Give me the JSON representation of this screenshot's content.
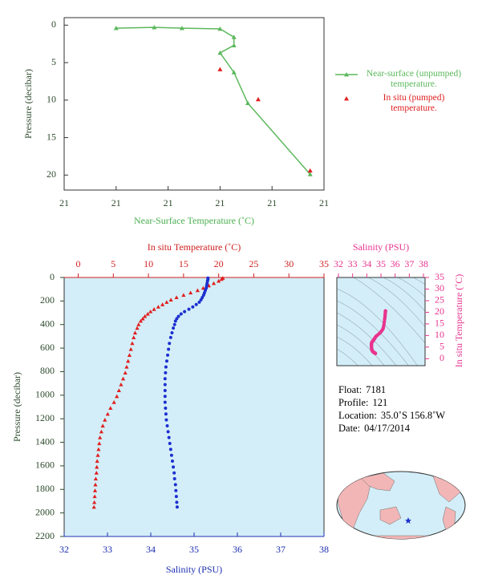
{
  "chart_data": [
    {
      "type": "line",
      "xlabel": "Near-Surface Temperature (˚C)",
      "ylabel": "Pressure (decibar)",
      "xlim": [
        20.6,
        21.35
      ],
      "xticks": [
        {
          "value": 20.6,
          "label": "21"
        },
        {
          "value": 20.75,
          "label": "21"
        },
        {
          "value": 20.9,
          "label": "21"
        },
        {
          "value": 21.05,
          "label": "21"
        },
        {
          "value": 21.2,
          "label": "21"
        },
        {
          "value": 21.35,
          "label": "21"
        }
      ],
      "ylim": [
        -1,
        22
      ],
      "yticks": [
        0,
        5,
        10,
        15,
        20
      ],
      "y_inverted": true,
      "legend": "right",
      "series": [
        {
          "name": "Near-surface (unpumped) temperature.",
          "color": "#5cb85c",
          "line": true,
          "marker": "triangle",
          "x": [
            20.75,
            20.86,
            20.94,
            21.05,
            21.09,
            21.09,
            21.05,
            21.09,
            21.13,
            21.31
          ],
          "values": [
            0.4,
            0.3,
            0.4,
            0.5,
            1.6,
            2.7,
            3.7,
            6.3,
            10.4,
            19.9
          ]
        },
        {
          "name": "In situ (pumped) temperature.",
          "color": "#e02020",
          "line": false,
          "marker": "triangle",
          "x": [
            21.05,
            21.16,
            21.31
          ],
          "values": [
            5.9,
            9.9,
            19.4
          ]
        }
      ]
    },
    {
      "type": "scatter",
      "ylabel": "Pressure (decibar)",
      "ylim": [
        0,
        2200
      ],
      "yticks": [
        0,
        200,
        400,
        600,
        800,
        1000,
        1200,
        1400,
        1600,
        1800,
        2000,
        2200
      ],
      "y_inverted": true,
      "xlabel": "Salinity (PSU)",
      "xlim": [
        32,
        38
      ],
      "xticks": [
        32,
        33,
        34,
        35,
        36,
        37,
        38
      ],
      "xcolor": "#1c2fb0",
      "x2label": "In situ Temperature (˚C)",
      "x2lim": [
        -2,
        35
      ],
      "x2ticks": [
        0,
        5,
        10,
        15,
        20,
        25,
        30,
        35
      ],
      "x2color": "#d02020",
      "background": "#d3eef8",
      "y": [
        5,
        15,
        30,
        50,
        70,
        90,
        110,
        130,
        150,
        170,
        190,
        210,
        230,
        250,
        270,
        290,
        310,
        330,
        350,
        370,
        400,
        430,
        470,
        510,
        560,
        610,
        660,
        710,
        760,
        810,
        860,
        910,
        960,
        1010,
        1060,
        1110,
        1160,
        1210,
        1260,
        1310,
        1360,
        1410,
        1460,
        1510,
        1560,
        1610,
        1660,
        1710,
        1760,
        1810,
        1860,
        1910,
        1950
      ],
      "series": [
        {
          "color": "#e02020",
          "marker": "triangle",
          "axis": "x2",
          "x": [
            20.6,
            20.4,
            20.0,
            19.3,
            18.6,
            17.8,
            17.0,
            16.0,
            15.0,
            14.0,
            13.2,
            12.6,
            12.0,
            11.4,
            10.8,
            10.3,
            9.9,
            9.5,
            9.2,
            8.9,
            8.6,
            8.4,
            8.1,
            7.9,
            7.7,
            7.5,
            7.3,
            7.1,
            6.9,
            6.7,
            6.4,
            6.1,
            5.8,
            5.5,
            5.1,
            4.6,
            4.2,
            3.8,
            3.5,
            3.3,
            3.1,
            3.0,
            2.9,
            2.8,
            2.7,
            2.65,
            2.6,
            2.5,
            2.45,
            2.4,
            2.35,
            2.3,
            2.25
          ]
        },
        {
          "color": "#1c2fd0",
          "marker": "circle",
          "axis": "x",
          "x": [
            35.32,
            35.32,
            35.31,
            35.3,
            35.29,
            35.28,
            35.26,
            35.24,
            35.22,
            35.19,
            35.16,
            35.12,
            35.05,
            34.97,
            34.88,
            34.78,
            34.7,
            34.64,
            34.6,
            34.57,
            34.55,
            34.52,
            34.49,
            34.46,
            34.43,
            34.41,
            34.39,
            34.37,
            34.35,
            34.34,
            34.33,
            34.33,
            34.33,
            34.33,
            34.33,
            34.34,
            34.35,
            34.36,
            34.38,
            34.4,
            34.42,
            34.44,
            34.46,
            34.48,
            34.5,
            34.52,
            34.54,
            34.55,
            34.57,
            34.58,
            34.59,
            34.6,
            34.61
          ]
        }
      ]
    },
    {
      "type": "scatter",
      "xlabel": "Salinity (PSU)",
      "xlim": [
        32,
        38
      ],
      "xticks": [
        32,
        33,
        34,
        35,
        36,
        37,
        38
      ],
      "ylabel": "In situ Temperature (˚C)",
      "ylim": [
        -3,
        35
      ],
      "yticks": [
        0,
        5,
        10,
        15,
        20,
        25,
        30,
        35
      ],
      "color": "#e8348f",
      "background": "#d3eef8"
    }
  ],
  "info": [
    {
      "label": "Float:",
      "value": "7181"
    },
    {
      "label": "Profile:",
      "value": "121"
    },
    {
      "label": "Location:",
      "value": "35.0˚S  156.8˚W"
    },
    {
      "label": "Date:",
      "value": "04/17/2014"
    }
  ]
}
